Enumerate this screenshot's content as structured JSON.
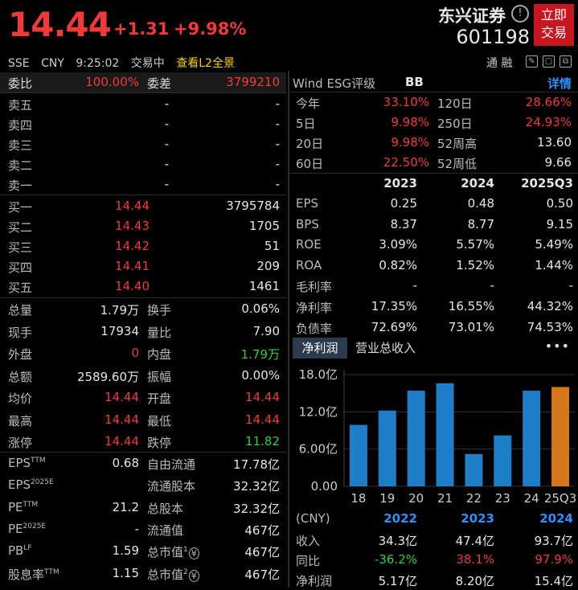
{
  "header": {
    "price": "14.44",
    "change": "+1.31",
    "change_pct": "+9.98%",
    "stock_name": "东兴证券",
    "stock_code": "601198",
    "info_glyph": "!",
    "trade_button": [
      "立即",
      "交易"
    ],
    "exchange": "SSE",
    "currency": "CNY",
    "time": "9:25:02",
    "status": "交易中",
    "l2_link": "查看L2全景",
    "margin_label": "通 融",
    "icons": [
      "edit-icon",
      "window-icon",
      "copy-icon",
      "settings-icon"
    ]
  },
  "book": {
    "wei_bi_label": "委比",
    "wei_bi": "100.00%",
    "wei_cha_label": "委差",
    "wei_cha": "3799210",
    "asks": [
      {
        "label": "卖五",
        "price": "-",
        "volume": "-"
      },
      {
        "label": "卖四",
        "price": "-",
        "volume": "-"
      },
      {
        "label": "卖三",
        "price": "-",
        "volume": "-"
      },
      {
        "label": "卖二",
        "price": "-",
        "volume": "-"
      },
      {
        "label": "卖一",
        "price": "-",
        "volume": "-"
      }
    ],
    "bids": [
      {
        "label": "买一",
        "price": "14.44",
        "volume": "3795784"
      },
      {
        "label": "买二",
        "price": "14.43",
        "volume": "1705"
      },
      {
        "label": "买三",
        "price": "14.42",
        "volume": "51"
      },
      {
        "label": "买四",
        "price": "14.41",
        "volume": "209"
      },
      {
        "label": "买五",
        "price": "14.40",
        "volume": "1461"
      }
    ]
  },
  "quote": [
    {
      "l1": "总量",
      "v1": "1.79万",
      "c1": "white",
      "l2": "换手",
      "v2": "0.06%",
      "c2": "white"
    },
    {
      "l1": "现手",
      "v1": "17934",
      "c1": "white",
      "l2": "量比",
      "v2": "7.90",
      "c2": "white"
    },
    {
      "l1": "外盘",
      "v1": "0",
      "c1": "red",
      "l2": "内盘",
      "v2": "1.79万",
      "c2": "green"
    },
    {
      "l1": "总额",
      "v1": "2589.60万",
      "c1": "white",
      "l2": "振幅",
      "v2": "0.00%",
      "c2": "white"
    },
    {
      "l1": "均价",
      "v1": "14.44",
      "c1": "red",
      "l2": "开盘",
      "v2": "14.44",
      "c2": "red"
    },
    {
      "l1": "最高",
      "v1": "14.44",
      "c1": "red",
      "l2": "最低",
      "v2": "14.44",
      "c2": "red"
    },
    {
      "l1": "涨停",
      "v1": "14.44",
      "c1": "red",
      "l2": "跌停",
      "v2": "11.82",
      "c2": "green"
    }
  ],
  "valuation": [
    {
      "l1": "EPS",
      "s1": "TTM",
      "v1": "0.68",
      "l2": "自由流通",
      "s2": "",
      "v2": "17.78亿"
    },
    {
      "l1": "EPS",
      "s1": "2025E",
      "v1": "",
      "l2": "流通股本",
      "s2": "",
      "v2": "32.32亿"
    },
    {
      "l1": "PE",
      "s1": "TTM",
      "v1": "21.2",
      "l2": "总股本",
      "s2": "",
      "v2": "32.32亿"
    },
    {
      "l1": "PE",
      "s1": "2025E",
      "v1": "-",
      "l2": "流通值",
      "s2": "",
      "v2": "467亿"
    },
    {
      "l1": "PB",
      "s1": "LF",
      "v1": "1.59",
      "l2": "总市值",
      "s2": "1",
      "v2": "467亿"
    },
    {
      "l1": "股息率",
      "s1": "TTM",
      "v1": "1.15",
      "l2": "总市值",
      "s2": "2",
      "v2": "467亿"
    }
  ],
  "esg": {
    "label": "Wind ESG评级",
    "rating": "BB",
    "detail": "详情"
  },
  "returns": [
    {
      "l1": "今年",
      "v1": "33.10%",
      "c1": "red",
      "l2": "120日",
      "v2": "28.66%",
      "c2": "red"
    },
    {
      "l1": "5日",
      "v1": "9.98%",
      "c1": "red",
      "l2": "250日",
      "v2": "24.93%",
      "c2": "red"
    },
    {
      "l1": "20日",
      "v1": "9.98%",
      "c1": "red",
      "l2": "52周高",
      "v2": "13.60",
      "c2": "white"
    },
    {
      "l1": "60日",
      "v1": "22.50%",
      "c1": "red",
      "l2": "52周低",
      "v2": "9.66",
      "c2": "white"
    }
  ],
  "fin_header": [
    "2023",
    "2024",
    "2025Q3"
  ],
  "financials": [
    {
      "label": "EPS",
      "vals": [
        "0.25",
        "0.48",
        "0.50"
      ]
    },
    {
      "label": "BPS",
      "vals": [
        "8.37",
        "8.77",
        "9.15"
      ]
    },
    {
      "label": "ROE",
      "vals": [
        "3.09%",
        "5.57%",
        "5.49%"
      ]
    },
    {
      "label": "ROA",
      "vals": [
        "0.82%",
        "1.52%",
        "1.44%"
      ]
    },
    {
      "label": "毛利率",
      "vals": [
        "-",
        "-",
        "-"
      ]
    },
    {
      "label": "净利率",
      "vals": [
        "17.35%",
        "16.55%",
        "44.32%"
      ]
    },
    {
      "label": "负债率",
      "vals": [
        "72.69%",
        "73.01%",
        "74.53%"
      ]
    }
  ],
  "tabs": {
    "active": "净利润",
    "other": "营业总收入",
    "more": "•••"
  },
  "chart_data": {
    "type": "bar",
    "categories": [
      "18",
      "19",
      "20",
      "21",
      "22",
      "23",
      "24",
      "25Q3"
    ],
    "values": [
      9.9,
      12.2,
      15.4,
      16.6,
      5.2,
      8.2,
      15.4,
      16.0
    ],
    "highlight_index": 7,
    "colors": {
      "normal": "#1e7fc8",
      "highlight": "#d6761a"
    },
    "ylim": [
      0,
      18
    ],
    "yticks": [
      0,
      6,
      12,
      18
    ],
    "ytick_labels": [
      "0.00",
      "6.00亿",
      "12.0亿",
      "18.0亿"
    ],
    "grid": true
  },
  "summary": {
    "unit": "(CNY)",
    "years": [
      "2022",
      "2023",
      "2024"
    ],
    "rows": [
      {
        "label": "收入",
        "vals": [
          "34.3亿",
          "47.4亿",
          "93.7亿"
        ],
        "colors": [
          "white",
          "white",
          "white"
        ]
      },
      {
        "label": "同比",
        "vals": [
          "-36.2%",
          "38.1%",
          "97.9%"
        ],
        "colors": [
          "green",
          "red",
          "red"
        ]
      },
      {
        "label": "净利润",
        "vals": [
          "5.17亿",
          "8.20亿",
          "15.4亿"
        ],
        "colors": [
          "white",
          "white",
          "white"
        ]
      }
    ]
  }
}
